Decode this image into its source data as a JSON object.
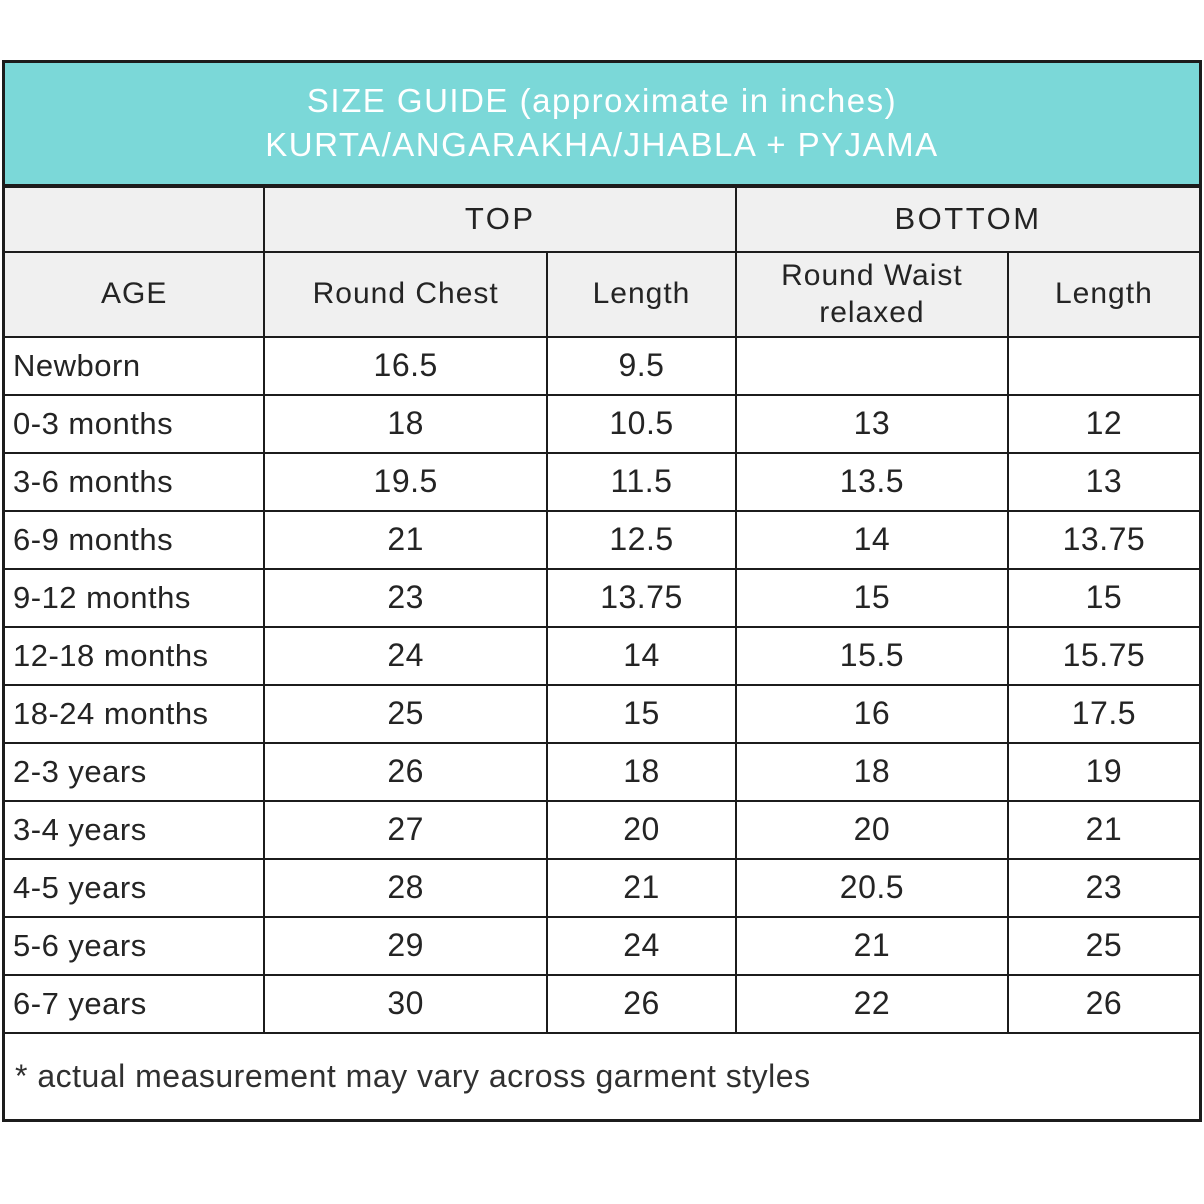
{
  "colors": {
    "header_bg": "#7BD8D8",
    "subheader_bg": "#F0F0F0",
    "border_color": "#1C1C1C",
    "header_text": "#FFFFFF",
    "body_text": "#242424"
  },
  "chart_data": {
    "type": "table",
    "title_line1": "SIZE GUIDE (approximate in inches)",
    "title_line2": "KURTA/ANGARAKHA/JHABLA + PYJAMA",
    "group_headers": {
      "top": "TOP",
      "bottom": "BOTTOM"
    },
    "columns": {
      "age": "AGE",
      "round_chest": "Round Chest",
      "top_length": "Length",
      "round_waist": "Round Waist relaxed",
      "bottom_length": "Length"
    },
    "column_keys": [
      "age",
      "round_chest",
      "top_length",
      "round_waist",
      "bottom_length"
    ],
    "rows": [
      {
        "age": "Newborn",
        "round_chest": "16.5",
        "top_length": "9.5",
        "round_waist": "",
        "bottom_length": ""
      },
      {
        "age": "0-3 months",
        "round_chest": "18",
        "top_length": "10.5",
        "round_waist": "13",
        "bottom_length": "12"
      },
      {
        "age": "3-6 months",
        "round_chest": "19.5",
        "top_length": "11.5",
        "round_waist": "13.5",
        "bottom_length": "13"
      },
      {
        "age": "6-9 months",
        "round_chest": "21",
        "top_length": "12.5",
        "round_waist": "14",
        "bottom_length": "13.75"
      },
      {
        "age": "9-12 months",
        "round_chest": "23",
        "top_length": "13.75",
        "round_waist": "15",
        "bottom_length": "15"
      },
      {
        "age": "12-18 months",
        "round_chest": "24",
        "top_length": "14",
        "round_waist": "15.5",
        "bottom_length": "15.75"
      },
      {
        "age": "18-24 months",
        "round_chest": "25",
        "top_length": "15",
        "round_waist": "16",
        "bottom_length": "17.5"
      },
      {
        "age": "2-3 years",
        "round_chest": "26",
        "top_length": "18",
        "round_waist": "18",
        "bottom_length": "19"
      },
      {
        "age": "3-4 years",
        "round_chest": "27",
        "top_length": "20",
        "round_waist": "20",
        "bottom_length": "21"
      },
      {
        "age": "4-5 years",
        "round_chest": "28",
        "top_length": "21",
        "round_waist": "20.5",
        "bottom_length": "23"
      },
      {
        "age": "5-6 years",
        "round_chest": "29",
        "top_length": "24",
        "round_waist": "21",
        "bottom_length": "25"
      },
      {
        "age": "6-7 years",
        "round_chest": "30",
        "top_length": "26",
        "round_waist": "22",
        "bottom_length": "26"
      }
    ],
    "footnote": "* actual measurement may vary across garment styles"
  }
}
